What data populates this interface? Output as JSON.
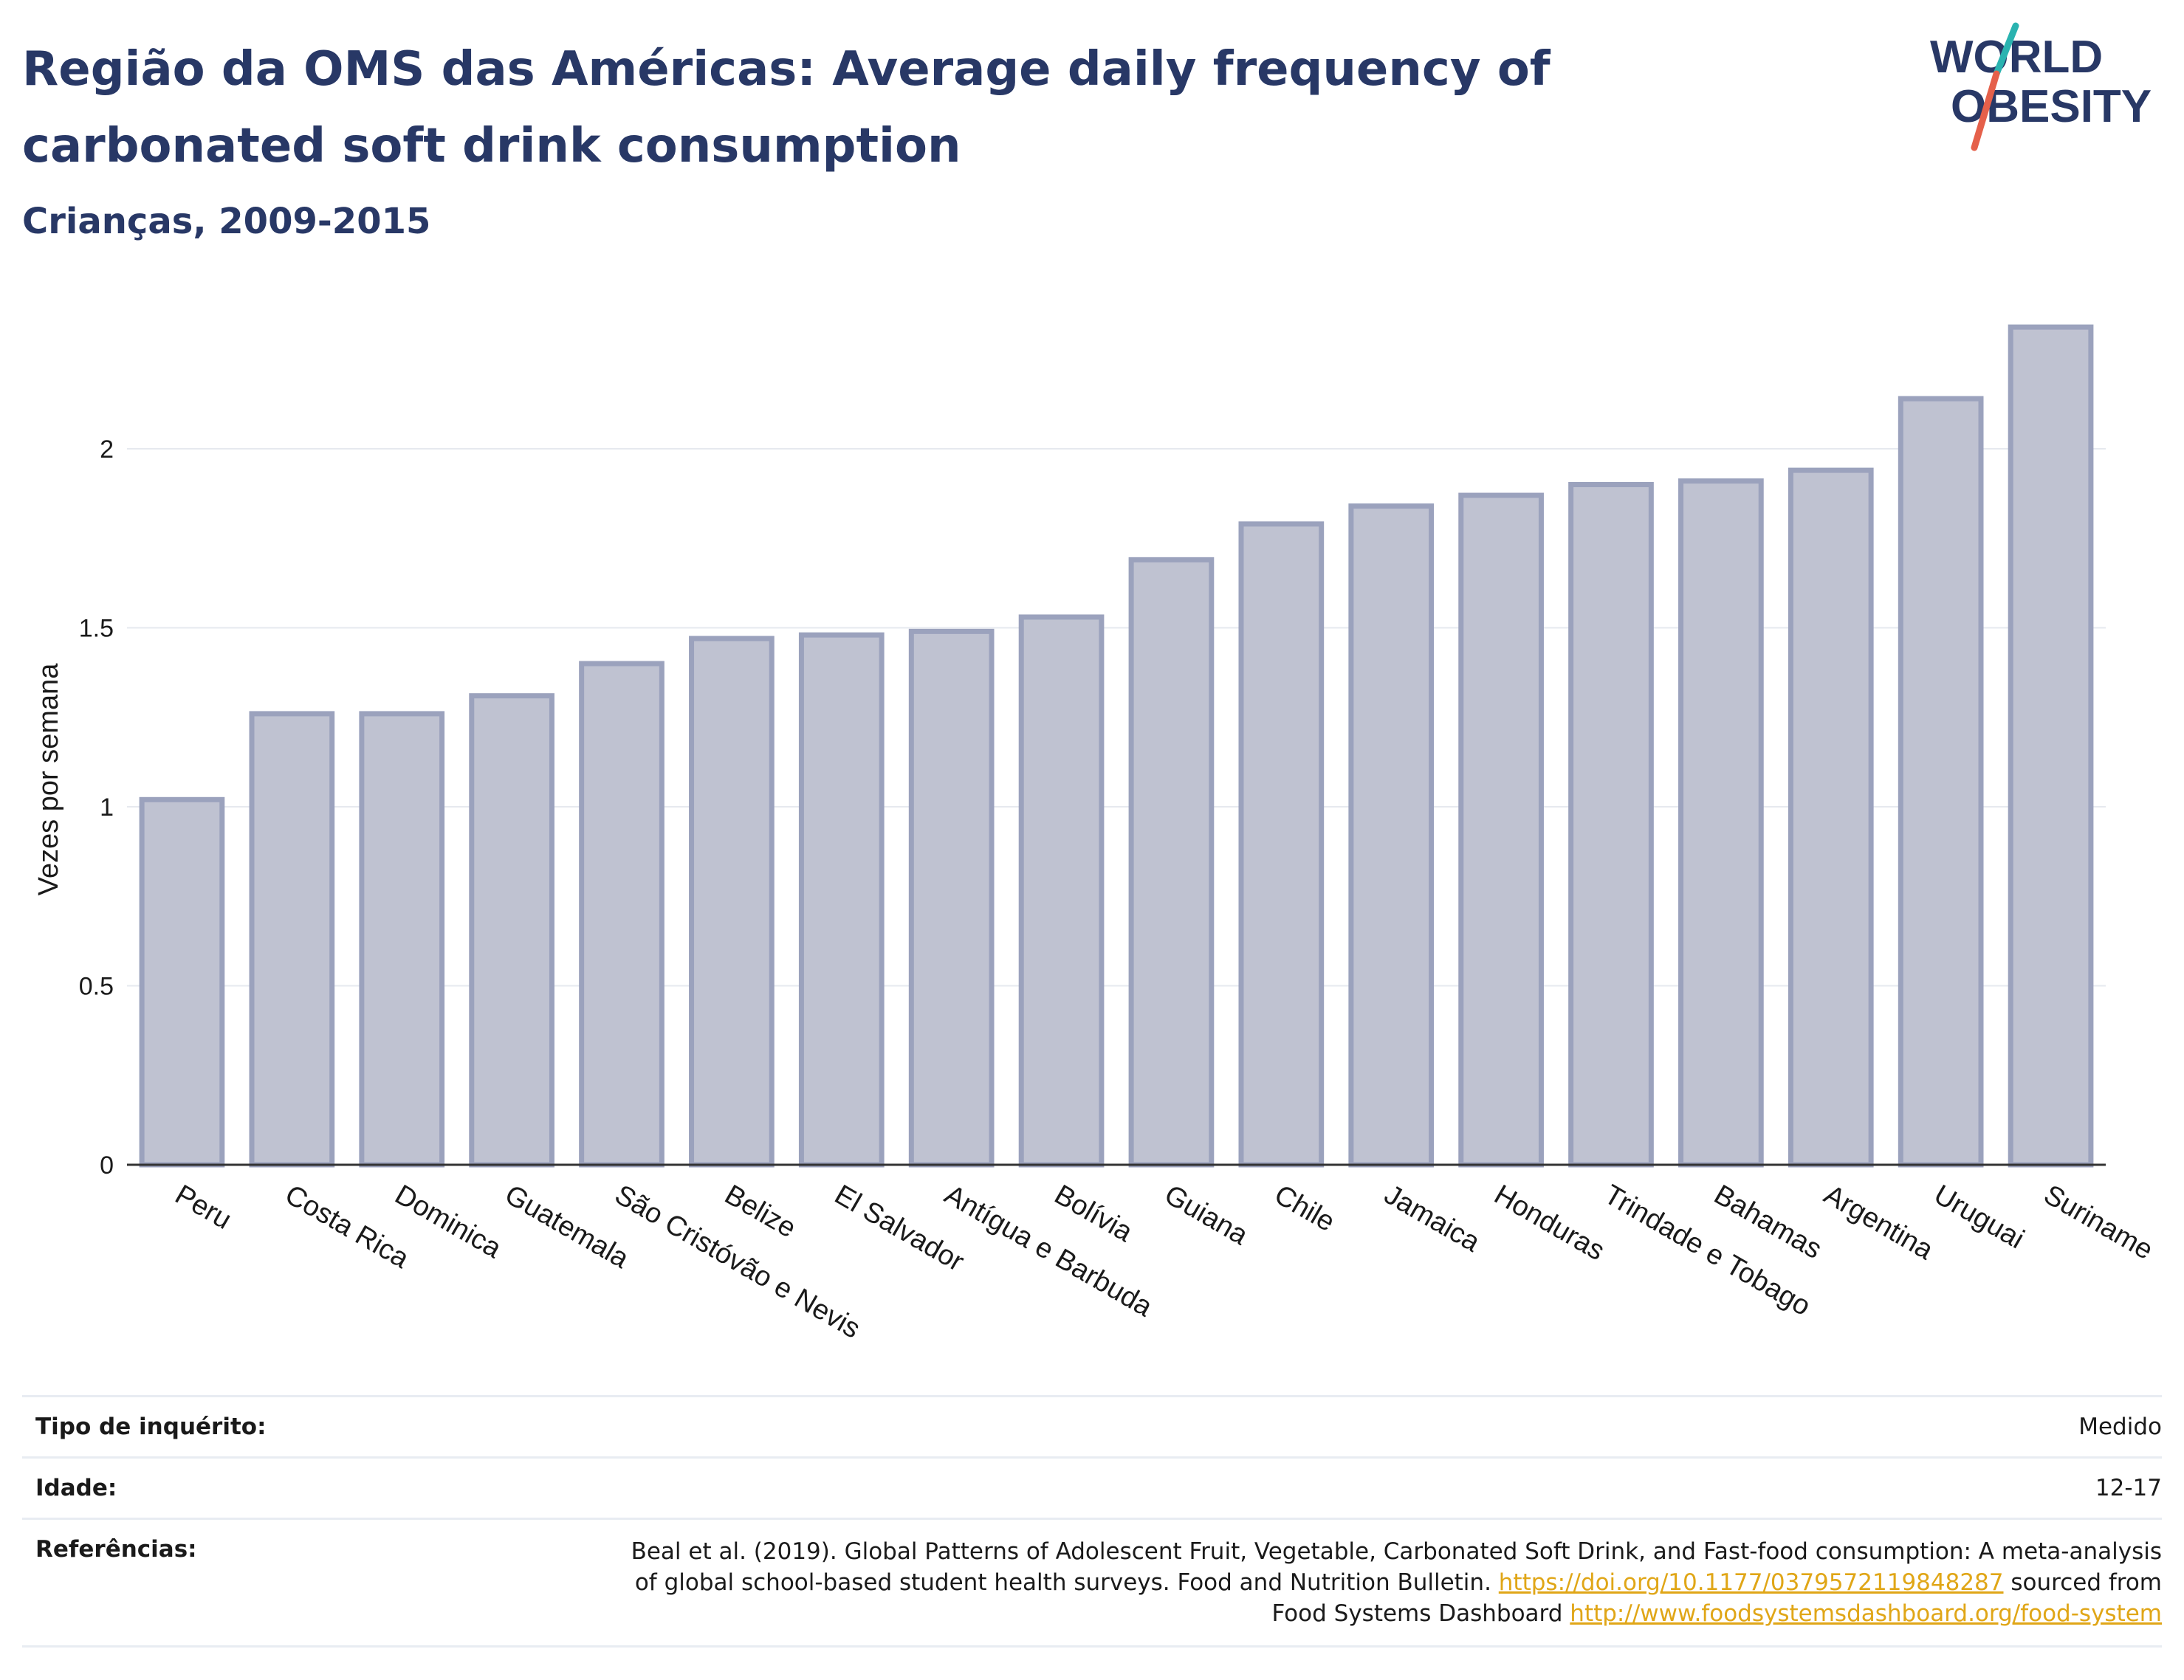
{
  "title": "Região da OMS das Américas: Average daily frequency of carbonated soft drink consumption",
  "subtitle": "Crianças, 2009-2015",
  "logo": {
    "line1": "WORLD",
    "line2": "OBESITY",
    "icon": "world-obesity-logo"
  },
  "colors": {
    "bar_fill": "#bfc2d1",
    "bar_stroke": "#9ba2bd",
    "title": "#283866",
    "logo_teal": "#2ab3b0",
    "logo_red": "#e5604a",
    "link": "#e0a617"
  },
  "chart_data": {
    "type": "bar",
    "title": "Região da OMS das Américas: Average daily frequency of carbonated soft drink consumption",
    "subtitle": "Crianças, 2009-2015",
    "xlabel": "",
    "ylabel": "Vezes por semana",
    "categories": [
      "Peru",
      "Costa Rica",
      "Dominica",
      "Guatemala",
      "São Cristóvão e Nevis",
      "Belize",
      "El Salvador",
      "Antígua e Barbuda",
      "Bolívia",
      "Guiana",
      "Chile",
      "Jamaica",
      "Honduras",
      "Trindade e Tobago",
      "Bahamas",
      "Argentina",
      "Uruguai",
      "Suriname"
    ],
    "values": [
      1.02,
      1.26,
      1.26,
      1.31,
      1.4,
      1.47,
      1.48,
      1.49,
      1.53,
      1.69,
      1.79,
      1.84,
      1.87,
      1.9,
      1.91,
      1.94,
      2.14,
      2.34
    ],
    "yticks": [
      0,
      0.5,
      1,
      1.5,
      2
    ],
    "ytick_labels": [
      "0",
      "0.5",
      "1",
      "1.5",
      "2"
    ],
    "ylim": [
      0,
      2.4
    ],
    "grid": true,
    "legend": "none"
  },
  "info": {
    "survey_label": "Tipo de inquérito:",
    "survey_value": "Medido",
    "age_label": "Idade:",
    "age_value": "12-17",
    "ref_label": "Referências:",
    "ref_text_1": "Beal et al. (2019). Global Patterns of Adolescent Fruit, Vegetable, Carbonated Soft Drink, and Fast-food consumption: A meta-analysis of global school-based student health surveys. Food and Nutrition Bulletin.",
    "ref_link_1": "https://doi.org/10.1177/0379572119848287",
    "ref_text_2": "sourced from Food Systems Dashboard",
    "ref_link_2": "http://www.foodsystemsdashboard.org/food-system"
  }
}
